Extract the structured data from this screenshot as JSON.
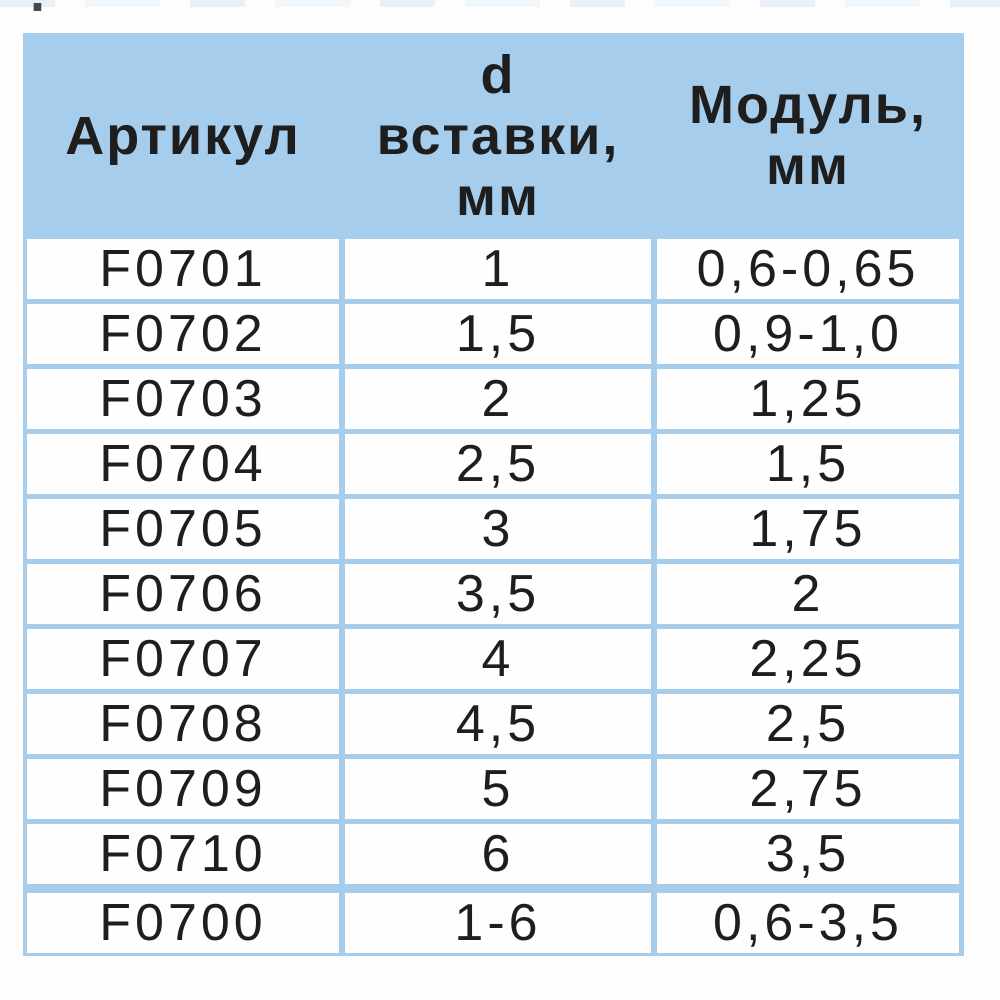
{
  "colors": {
    "table_blue": "#a6cdec",
    "cell_white": "#fefefe",
    "text_dark": "#1e1e1e",
    "page_bg": "#fdfdfd"
  },
  "page": {
    "stray_mark": "."
  },
  "table": {
    "columns": [
      {
        "id": "article",
        "label": "Артикул"
      },
      {
        "id": "d_insert",
        "label": "d\nвставки,\nмм"
      },
      {
        "id": "module",
        "label": "Модуль,\nмм"
      }
    ],
    "rows": [
      {
        "article": "F0701",
        "d_insert": "1",
        "module": "0,6-0,65"
      },
      {
        "article": "F0702",
        "d_insert": "1,5",
        "module": "0,9-1,0"
      },
      {
        "article": "F0703",
        "d_insert": "2",
        "module": "1,25"
      },
      {
        "article": "F0704",
        "d_insert": "2,5",
        "module": "1,5"
      },
      {
        "article": "F0705",
        "d_insert": "3",
        "module": "1,75"
      },
      {
        "article": "F0706",
        "d_insert": "3,5",
        "module": "2"
      },
      {
        "article": "F0707",
        "d_insert": "4",
        "module": "2,25"
      },
      {
        "article": "F0708",
        "d_insert": "4,5",
        "module": "2,5"
      },
      {
        "article": "F0709",
        "d_insert": "5",
        "module": "2,75"
      },
      {
        "article": "F0710",
        "d_insert": "6",
        "module": "3,5"
      },
      {
        "article": "F0700",
        "d_insert": "1-6",
        "module": "0,6-3,5"
      }
    ]
  }
}
